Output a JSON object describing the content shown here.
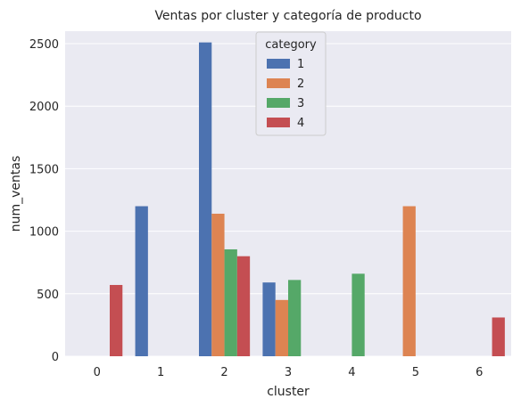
{
  "chart_data": {
    "type": "bar",
    "title": "Ventas por cluster y categoría de producto",
    "xlabel": "cluster",
    "ylabel": "num_ventas",
    "categories": [
      "0",
      "1",
      "2",
      "3",
      "4",
      "5",
      "6"
    ],
    "ylim": [
      0,
      2600
    ],
    "yticks": [
      0,
      500,
      1000,
      1500,
      2000,
      2500
    ],
    "grid": true,
    "legend": {
      "title": "category",
      "placement": "top-center"
    },
    "series": [
      {
        "name": "1",
        "color": "#4c72b0",
        "values": [
          null,
          1200,
          2510,
          590,
          null,
          null,
          null
        ]
      },
      {
        "name": "2",
        "color": "#dd8452",
        "values": [
          null,
          null,
          1140,
          450,
          null,
          1200,
          null
        ]
      },
      {
        "name": "3",
        "color": "#55a868",
        "values": [
          null,
          null,
          855,
          610,
          660,
          null,
          null
        ]
      },
      {
        "name": "4",
        "color": "#c44e52",
        "values": [
          570,
          null,
          800,
          null,
          null,
          null,
          310
        ]
      }
    ]
  }
}
